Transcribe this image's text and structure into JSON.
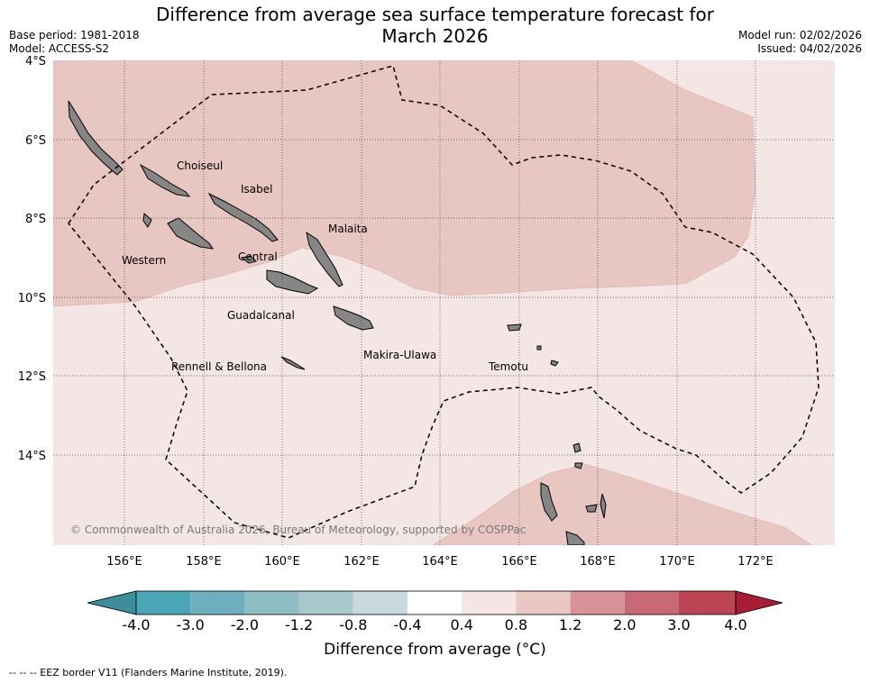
{
  "title_line1": "Difference from average sea surface temperature forecast for",
  "title_line2": "March 2026",
  "meta_left": {
    "base_period": "Base period: 1981-2018",
    "model": "Model: ACCESS-S2"
  },
  "meta_right": {
    "model_run": "Model run: 02/02/2026",
    "issued": "Issued: 04/02/2026"
  },
  "map": {
    "lon_range": [
      154.2,
      174.0
    ],
    "lat_range": [
      -16.0,
      -4.0
    ],
    "lat_ticks": [
      "4°S",
      "6°S",
      "8°S",
      "10°S",
      "12°S",
      "14°S"
    ],
    "lon_ticks": [
      "156°E",
      "158°E",
      "160°E",
      "162°E",
      "164°E",
      "166°E",
      "168°E",
      "170°E",
      "172°E"
    ],
    "provinces": [
      "Choiseul",
      "Isabel",
      "Malaita",
      "Western",
      "Central",
      "Guadalcanal",
      "Makira-Ulawa",
      "Rennell & Bellona",
      "Temotu"
    ],
    "copyright": "© Commonwealth of Australia 2026, Bureau of Meteorology, supported by COSPPac",
    "colors": {
      "anom_0_4_0_8": "#f4e6e4",
      "anom_0_8_1_2": "#e8c6c2",
      "land": "#878686"
    }
  },
  "colorbar": {
    "ticks": [
      "-4.0",
      "-3.0",
      "-2.0",
      "-1.2",
      "-0.8",
      "-0.4",
      "0.4",
      "0.8",
      "1.2",
      "2.0",
      "3.0",
      "4.0"
    ],
    "colors": [
      "#3d8e9c",
      "#4aa5b5",
      "#6dafbe",
      "#8fbdc6",
      "#a9c8cc",
      "#c9d8dc",
      "#ffffff",
      "#f5e6e4",
      "#e9c8c4",
      "#d8929a",
      "#c86a76",
      "#bb4553",
      "#a81c35"
    ],
    "title": "Difference from average (°C)"
  },
  "footer": "--  --  -- EEZ border V11 (Flanders Marine Institute, 2019)."
}
